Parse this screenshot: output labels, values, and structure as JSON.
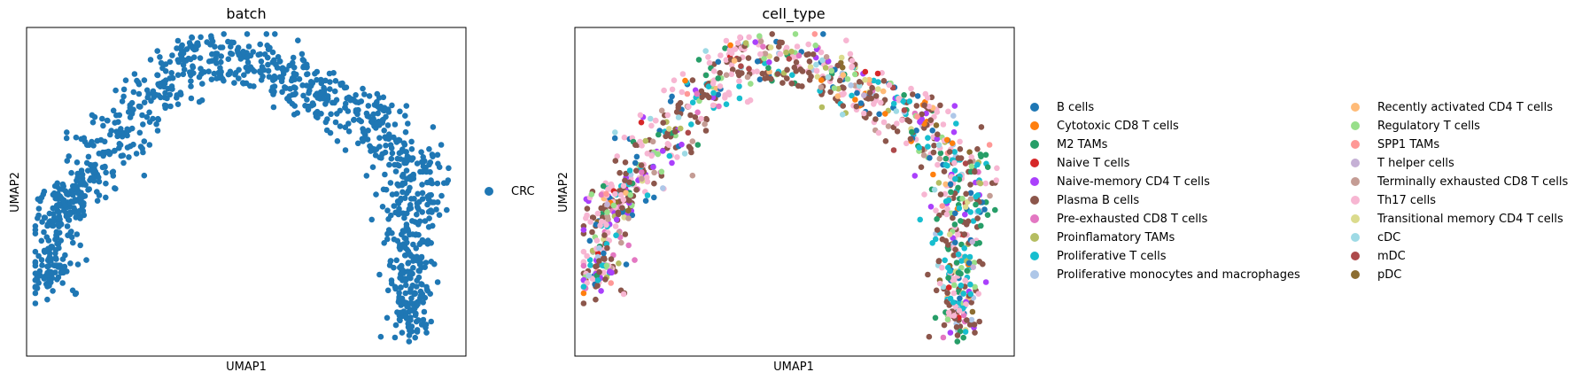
{
  "chart_data": [
    {
      "type": "scatter",
      "title": "batch",
      "xlabel": "UMAP1",
      "ylabel": "UMAP2",
      "legend_placement": "right",
      "categories": [
        {
          "name": "CRC",
          "color": "#1f77b4"
        }
      ]
    },
    {
      "type": "scatter",
      "title": "cell_type",
      "xlabel": "UMAP1",
      "ylabel": "UMAP2",
      "legend_placement": "right",
      "categories": [
        {
          "name": "B cells",
          "color": "#1f77b4"
        },
        {
          "name": "Cytotoxic CD8 T cells",
          "color": "#ff7f0e"
        },
        {
          "name": "M2 TAMs",
          "color": "#279e68"
        },
        {
          "name": "Naive T cells",
          "color": "#d62728"
        },
        {
          "name": "Naive-memory CD4 T cells",
          "color": "#aa40fc"
        },
        {
          "name": "Plasma B cells",
          "color": "#8c564b"
        },
        {
          "name": "Pre-exhausted CD8 T cells",
          "color": "#e377c2"
        },
        {
          "name": "Proinflamatory TAMs",
          "color": "#b5bd61"
        },
        {
          "name": "Proliferative T cells",
          "color": "#17becf"
        },
        {
          "name": "Proliferative monocytes and macrophages",
          "color": "#aec7e8"
        },
        {
          "name": "Recently activated CD4 T cells",
          "color": "#ffbb78"
        },
        {
          "name": "Regulatory T cells",
          "color": "#98df8a"
        },
        {
          "name": "SPP1 TAMs",
          "color": "#ff9896"
        },
        {
          "name": "T helper cells",
          "color": "#c5b0d5"
        },
        {
          "name": "Terminally exhausted CD8 T cells",
          "color": "#c49c94"
        },
        {
          "name": "Th17 cells",
          "color": "#f7b6d2"
        },
        {
          "name": "Transitional memory CD4 T cells",
          "color": "#dbdb8d"
        },
        {
          "name": "cDC",
          "color": "#9edae5"
        },
        {
          "name": "mDC",
          "color": "#ad494a"
        },
        {
          "name": "pDC",
          "color": "#8c6d31"
        }
      ]
    }
  ]
}
